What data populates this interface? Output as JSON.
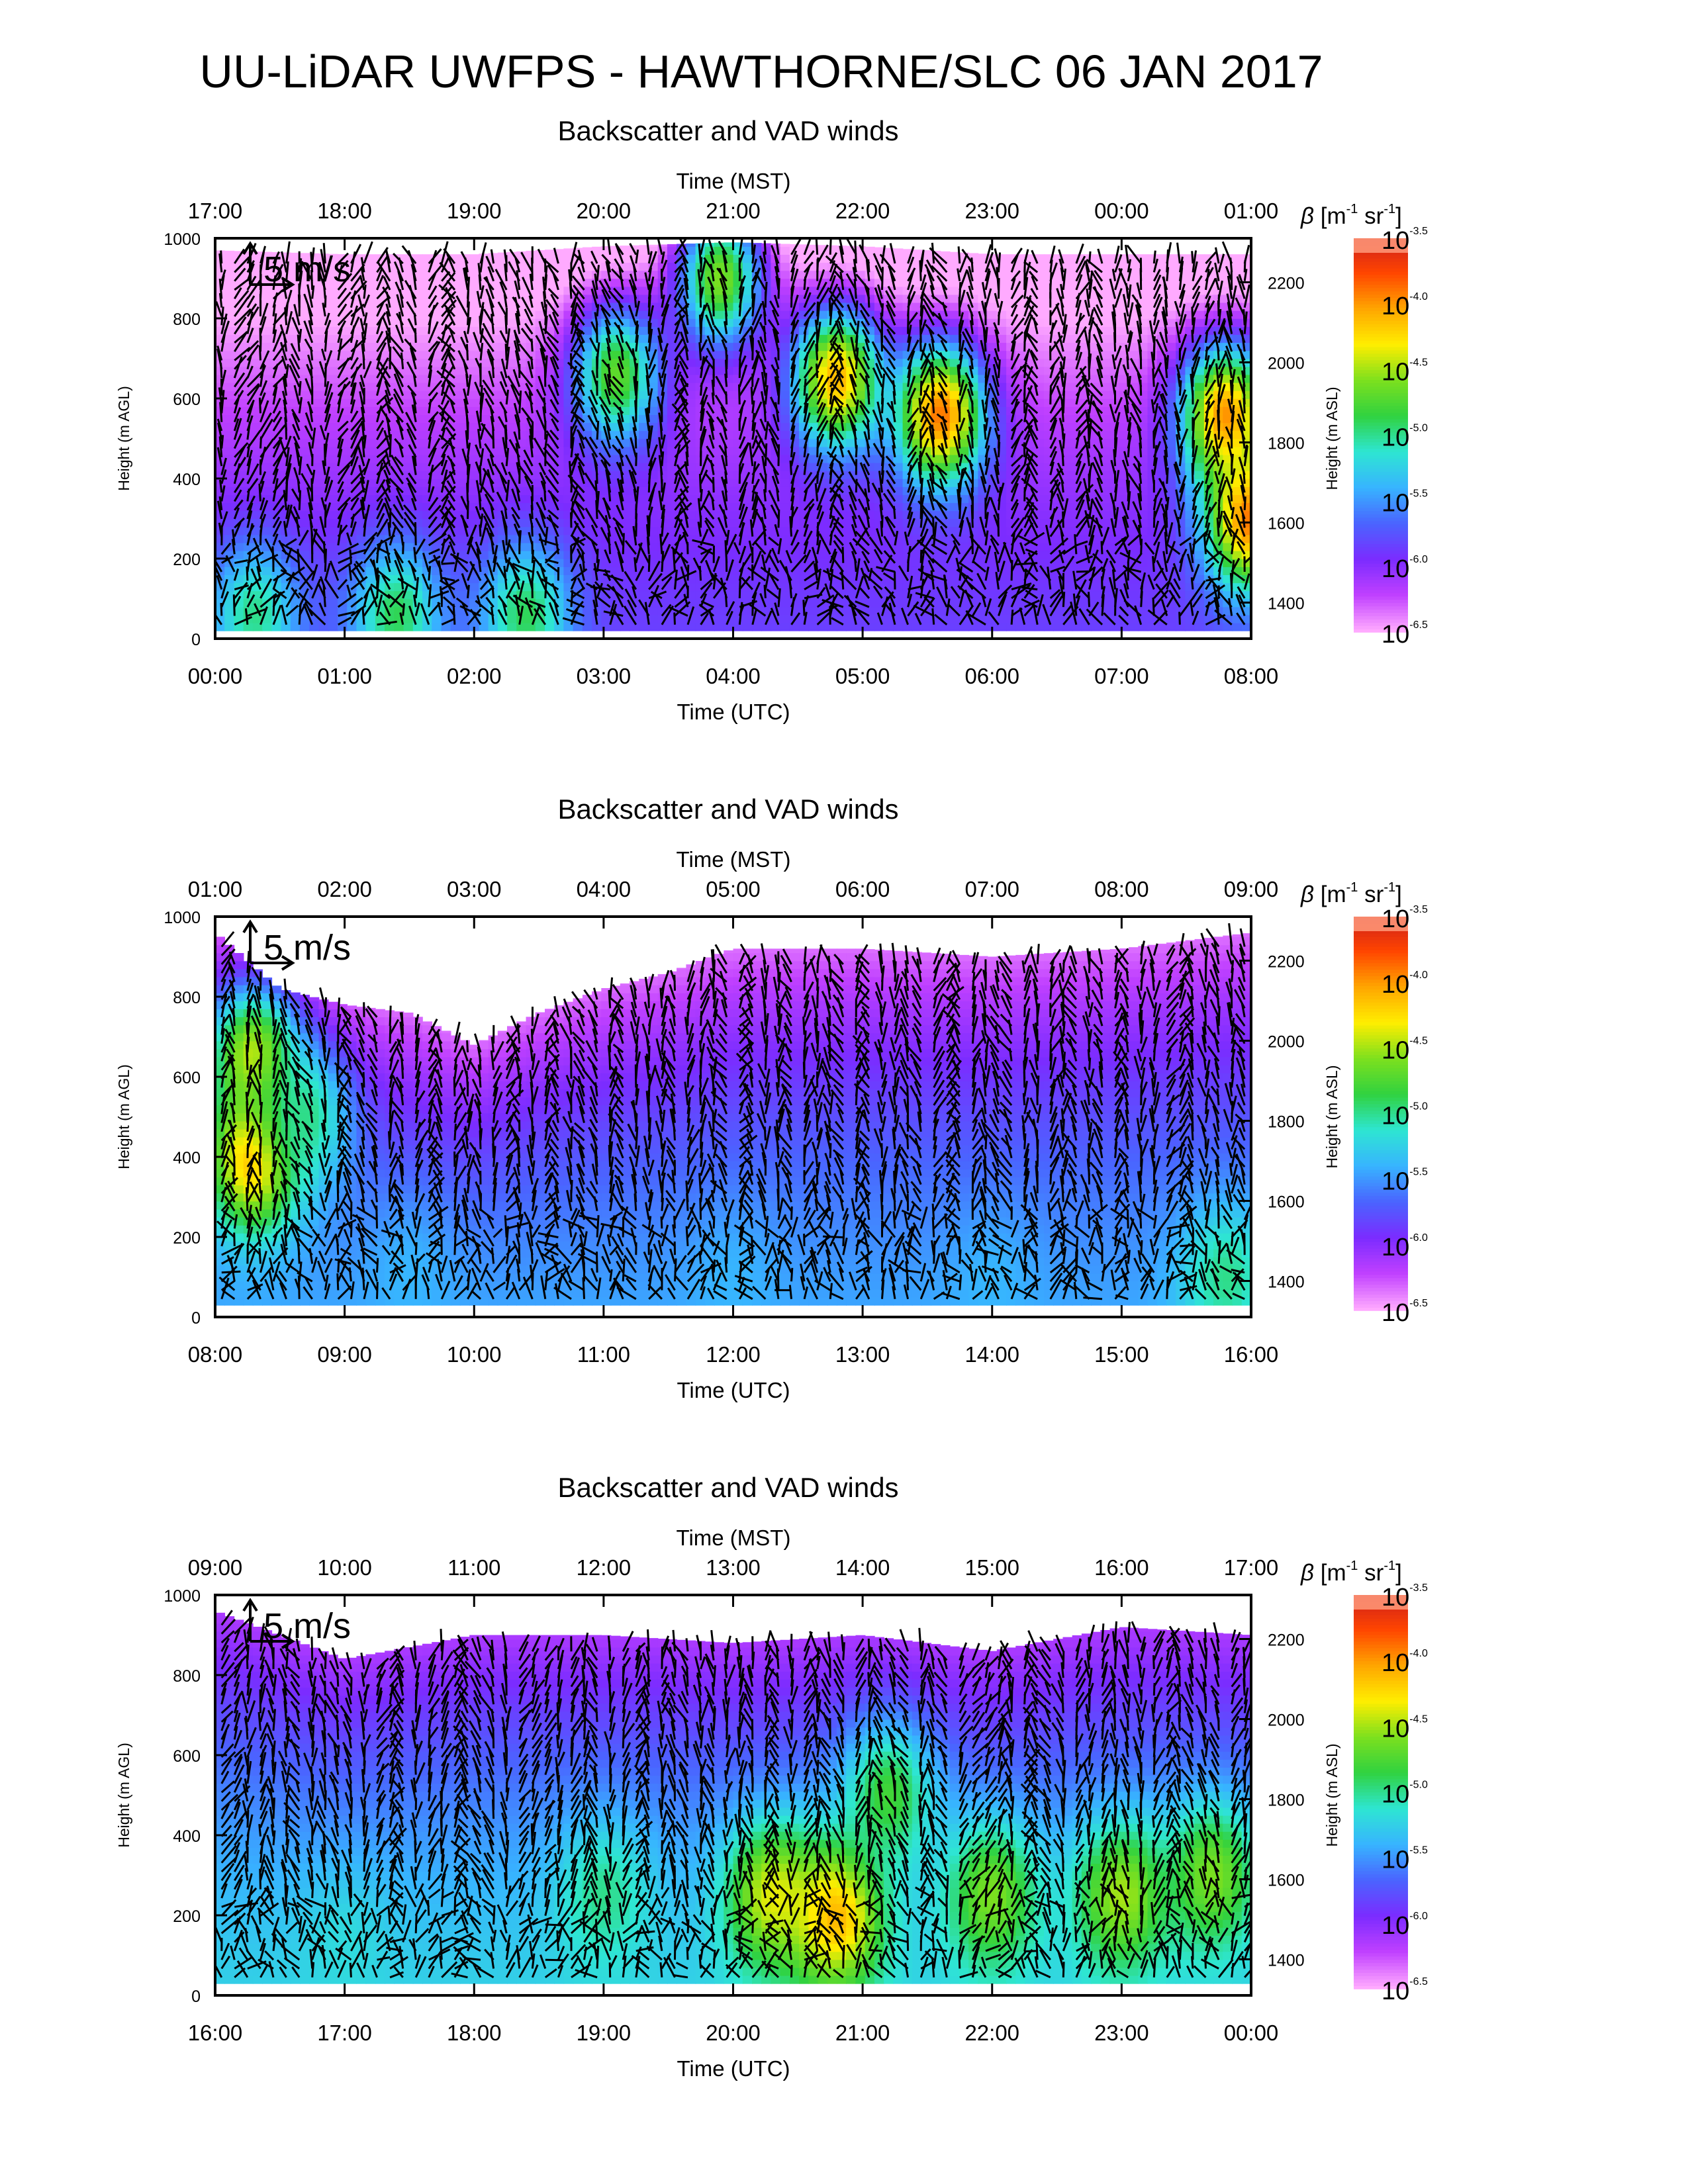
{
  "title": "UU-LiDAR UWFPS - HAWTHORNE/SLC 06 JAN 2017",
  "colors": {
    "white_mask": "#ffffff",
    "arrow": "#000000",
    "colorbar": [
      "#ffaaff",
      "#c040ff",
      "#7b2cff",
      "#4a64ff",
      "#37b4ff",
      "#2ee6d2",
      "#30d240",
      "#7de01e",
      "#ffee00",
      "#ffa500",
      "#ff4500",
      "#cc1e1e",
      "#ff9a7a"
    ]
  },
  "chart_data": [
    {
      "type": "heatmap",
      "subtitle": "Backscatter and VAD winds",
      "xlabel_top": "Time (MST)",
      "xlabel": "Time (UTC)",
      "ylabel": "Height (m AGL)",
      "ylabel_right": "Height (m ASL)",
      "colorbar_label": "β [m-1 sr-1]",
      "colorbar_ticks": [
        "10^-3.5",
        "10^-4.0",
        "10^-4.5",
        "10^-5.0",
        "10^-5.5",
        "10^-6.0",
        "10^-6.5"
      ],
      "log_beta_range": [
        -6.5,
        -3.5
      ],
      "scale_arrow_label": "5 m/s",
      "xticks_utc": [
        "00:00",
        "01:00",
        "02:00",
        "03:00",
        "04:00",
        "05:00",
        "06:00",
        "07:00",
        "08:00"
      ],
      "xticks_mst": [
        "17:00",
        "18:00",
        "19:00",
        "20:00",
        "21:00",
        "22:00",
        "23:00",
        "00:00",
        "01:00"
      ],
      "yticks": [
        "0",
        "200",
        "400",
        "600",
        "800",
        "1000"
      ],
      "yticks_right": [
        "1400",
        "1600",
        "1800",
        "2000",
        "2200"
      ],
      "ylim": [
        0,
        1000
      ],
      "ylim_right": [
        1310,
        2310
      ],
      "data_top_agl": [
        [
          0,
          970
        ],
        [
          1,
          960
        ],
        [
          2,
          960
        ],
        [
          3,
          980
        ],
        [
          4,
          990
        ],
        [
          5,
          980
        ],
        [
          6,
          960
        ],
        [
          7,
          960
        ],
        [
          8,
          960
        ]
      ],
      "data_bottom_agl": 20,
      "beta_hotspots": [
        {
          "time_utc": 0.3,
          "height_agl": 60,
          "log_beta": -5.0
        },
        {
          "time_utc": 1.4,
          "height_agl": 60,
          "log_beta": -4.9
        },
        {
          "time_utc": 2.4,
          "height_agl": 60,
          "log_beta": -4.9
        },
        {
          "time_utc": 3.1,
          "height_agl": 660,
          "log_beta": -4.7
        },
        {
          "time_utc": 3.9,
          "height_agl": 900,
          "log_beta": -4.6
        },
        {
          "time_utc": 4.8,
          "height_agl": 650,
          "log_beta": -4.1
        },
        {
          "time_utc": 5.6,
          "height_agl": 560,
          "log_beta": -3.9
        },
        {
          "time_utc": 7.8,
          "height_agl": 560,
          "log_beta": -4.0
        },
        {
          "time_utc": 8.0,
          "height_agl": 300,
          "log_beta": -3.9
        }
      ],
      "background_log_beta": -6.2
    },
    {
      "type": "heatmap",
      "subtitle": "Backscatter and VAD winds",
      "xlabel_top": "Time (MST)",
      "xlabel": "Time (UTC)",
      "ylabel": "Height (m AGL)",
      "ylabel_right": "Height (m ASL)",
      "colorbar_label": "β [m-1 sr-1]",
      "colorbar_ticks": [
        "10^-3.5",
        "10^-4.0",
        "10^-4.5",
        "10^-5.0",
        "10^-5.5",
        "10^-6.0",
        "10^-6.5"
      ],
      "log_beta_range": [
        -6.5,
        -3.5
      ],
      "scale_arrow_label": "5 m/s",
      "xticks_utc": [
        "08:00",
        "09:00",
        "10:00",
        "11:00",
        "12:00",
        "13:00",
        "14:00",
        "15:00",
        "16:00"
      ],
      "xticks_mst": [
        "01:00",
        "02:00",
        "03:00",
        "04:00",
        "05:00",
        "06:00",
        "07:00",
        "08:00",
        "09:00"
      ],
      "yticks": [
        "0",
        "200",
        "400",
        "600",
        "800",
        "1000"
      ],
      "yticks_right": [
        "1400",
        "1600",
        "1800",
        "2000",
        "2200"
      ],
      "ylim": [
        0,
        1000
      ],
      "ylim_right": [
        1310,
        2310
      ],
      "data_top_agl": [
        [
          8,
          960
        ],
        [
          8.5,
          820
        ],
        [
          9,
          780
        ],
        [
          9.5,
          760
        ],
        [
          10,
          680
        ],
        [
          10.5,
          760
        ],
        [
          11,
          820
        ],
        [
          11.5,
          860
        ],
        [
          12,
          920
        ],
        [
          13,
          920
        ],
        [
          14,
          900
        ],
        [
          15,
          920
        ],
        [
          16,
          960
        ]
      ],
      "data_bottom_agl": 30,
      "beta_hotspots": [
        {
          "time_utc": 8.3,
          "height_agl": 400,
          "log_beta": -4.0
        },
        {
          "time_utc": 8.3,
          "height_agl": 650,
          "log_beta": -4.4
        },
        {
          "time_utc": 8.7,
          "height_agl": 500,
          "log_beta": -5.0
        },
        {
          "time_utc": 9.5,
          "height_agl": 100,
          "log_beta": -5.4
        },
        {
          "time_utc": 12.0,
          "height_agl": 80,
          "log_beta": -5.4
        },
        {
          "time_utc": 14.0,
          "height_agl": 80,
          "log_beta": -5.4
        },
        {
          "time_utc": 15.8,
          "height_agl": 100,
          "log_beta": -5.0
        }
      ],
      "background_log_beta": -5.8
    },
    {
      "type": "heatmap",
      "subtitle": "Backscatter and VAD winds",
      "xlabel_top": "Time (MST)",
      "xlabel": "Time (UTC)",
      "ylabel": "Height (m AGL)",
      "ylabel_right": "Height (m ASL)",
      "colorbar_label": "β [m-1 sr-1]",
      "colorbar_ticks": [
        "10^-3.5",
        "10^-4.0",
        "10^-4.5",
        "10^-5.0",
        "10^-5.5",
        "10^-6.0",
        "10^-6.5"
      ],
      "log_beta_range": [
        -6.5,
        -3.5
      ],
      "scale_arrow_label": "5 m/s",
      "xticks_utc": [
        "16:00",
        "17:00",
        "18:00",
        "19:00",
        "20:00",
        "21:00",
        "22:00",
        "23:00",
        "00:00"
      ],
      "xticks_mst": [
        "09:00",
        "10:00",
        "11:00",
        "12:00",
        "13:00",
        "14:00",
        "15:00",
        "16:00",
        "17:00"
      ],
      "yticks": [
        "0",
        "200",
        "400",
        "600",
        "800",
        "1000"
      ],
      "yticks_right": [
        "1400",
        "1600",
        "1800",
        "2000",
        "2200"
      ],
      "ylim": [
        0,
        1000
      ],
      "ylim_right": [
        1310,
        2310
      ],
      "data_top_agl": [
        [
          16,
          960
        ],
        [
          17,
          840
        ],
        [
          18,
          900
        ],
        [
          19,
          900
        ],
        [
          20,
          880
        ],
        [
          21,
          900
        ],
        [
          22,
          860
        ],
        [
          23,
          920
        ],
        [
          24,
          900
        ]
      ],
      "data_bottom_agl": 30,
      "beta_hotspots": [
        {
          "time_utc": 17.0,
          "height_agl": 120,
          "log_beta": -5.2
        },
        {
          "time_utc": 19.0,
          "height_agl": 250,
          "log_beta": -5.0
        },
        {
          "time_utc": 20.3,
          "height_agl": 250,
          "log_beta": -4.4
        },
        {
          "time_utc": 20.8,
          "height_agl": 200,
          "log_beta": -4.1
        },
        {
          "time_utc": 21.2,
          "height_agl": 500,
          "log_beta": -4.8
        },
        {
          "time_utc": 22.0,
          "height_agl": 250,
          "log_beta": -4.6
        },
        {
          "time_utc": 23.0,
          "height_agl": 250,
          "log_beta": -4.5
        },
        {
          "time_utc": 23.7,
          "height_agl": 300,
          "log_beta": -4.6
        }
      ],
      "background_log_beta": -5.6
    }
  ]
}
